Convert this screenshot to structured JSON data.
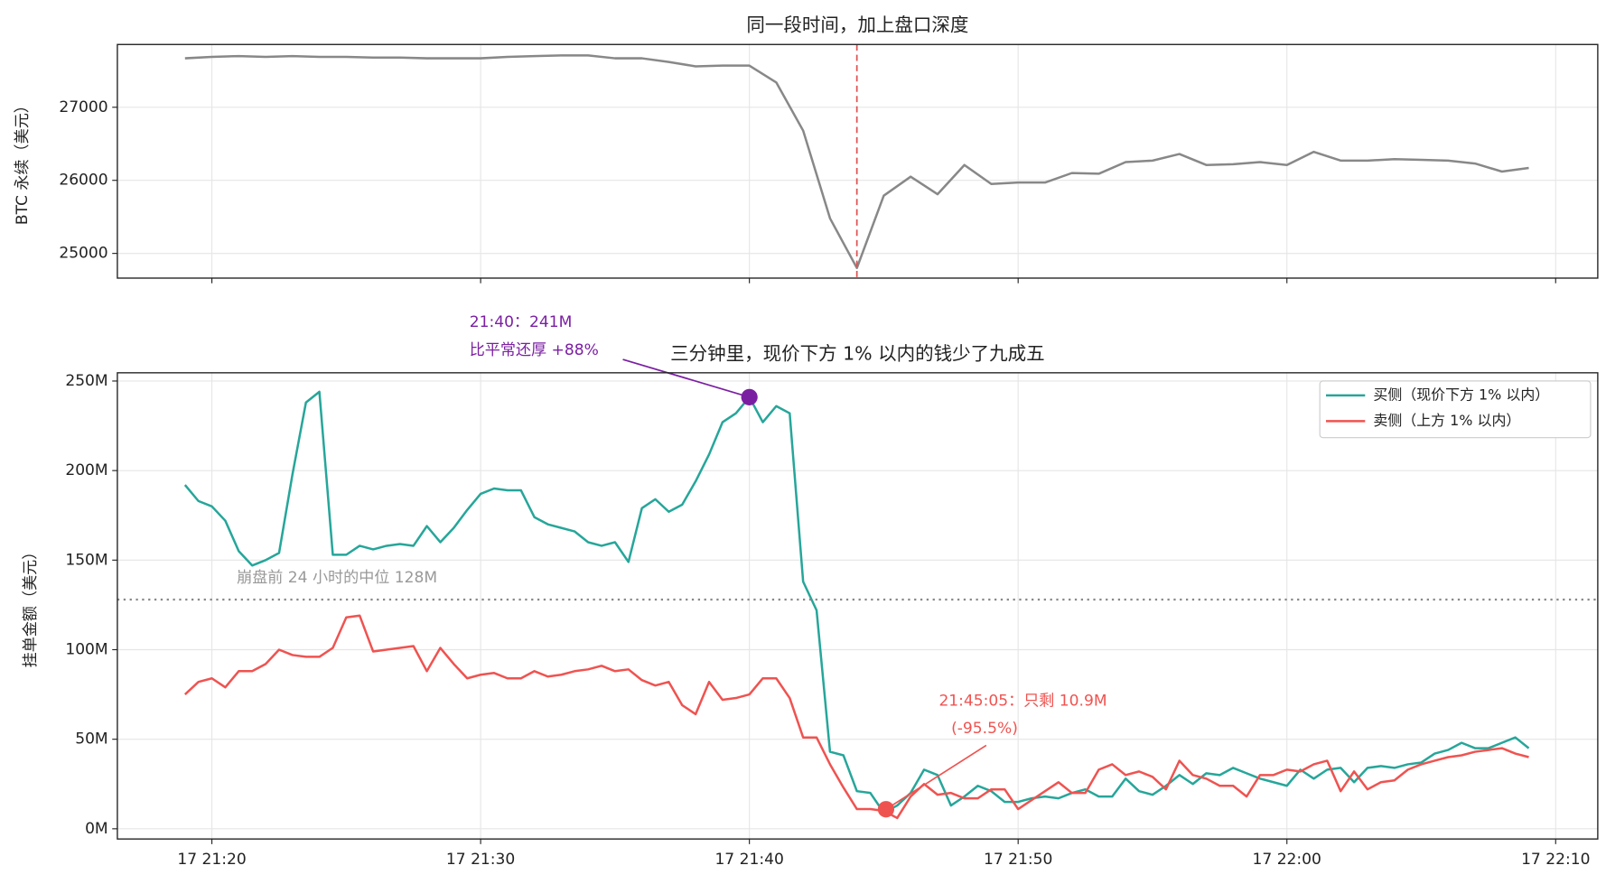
{
  "chart_data": [
    {
      "type": "line",
      "title": "同一段时间，加上盘口深度",
      "ylabel": "BTC 永续（美元）",
      "color": "#888888",
      "grid": true,
      "x": [
        "17 21:19",
        "17 21:20",
        "17 21:21",
        "17 21:22",
        "17 21:23",
        "17 21:24",
        "17 21:25",
        "17 21:26",
        "17 21:27",
        "17 21:28",
        "17 21:29",
        "17 21:30",
        "17 21:31",
        "17 21:32",
        "17 21:33",
        "17 21:34",
        "17 21:35",
        "17 21:36",
        "17 21:37",
        "17 21:38",
        "17 21:39",
        "17 21:40",
        "17 21:41",
        "17 21:42",
        "17 21:43",
        "17 21:44",
        "17 21:45",
        "17 21:46",
        "17 21:47",
        "17 21:48",
        "17 21:49",
        "17 21:50",
        "17 21:51",
        "17 21:52",
        "17 21:53",
        "17 21:54",
        "17 21:55",
        "17 21:56",
        "17 21:57",
        "17 21:58",
        "17 21:59",
        "17 22:00",
        "17 22:01",
        "17 22:02",
        "17 22:03",
        "17 22:04",
        "17 22:05",
        "17 22:06",
        "17 22:07",
        "17 22:08",
        "17 22:09"
      ],
      "values": [
        27670,
        27690,
        27700,
        27690,
        27700,
        27690,
        27690,
        27680,
        27680,
        27670,
        27670,
        27670,
        27690,
        27700,
        27710,
        27710,
        27670,
        27670,
        27620,
        27560,
        27570,
        27570,
        27340,
        26680,
        25480,
        24800,
        25790,
        26050,
        25810,
        26210,
        25950,
        25970,
        25970,
        26100,
        26090,
        26250,
        26270,
        26360,
        26210,
        26220,
        26250,
        26210,
        26390,
        26270,
        26270,
        26290,
        26280,
        26270,
        26230,
        26120,
        26170
      ],
      "xlim": [
        "17 21:16:29",
        "17 22:11:34"
      ],
      "xticks": [
        "17 21:20",
        "17 21:30",
        "17 21:40",
        "17 21:50",
        "17 22:00",
        "17 22:10"
      ],
      "ylim": [
        24662,
        27859
      ],
      "yticks": [
        25000,
        26000,
        27000
      ],
      "vline": {
        "x": "17 21:44",
        "color": "#e05050"
      }
    },
    {
      "type": "line",
      "title": "三分钟里，现价下方 1% 以内的钱少了九成五",
      "ylabel": "挂单金额（美元）",
      "grid": true,
      "legend": "upper right",
      "x": [
        "17 21:19:00",
        "17 21:19:30",
        "17 21:20:00",
        "17 21:20:30",
        "17 21:21:00",
        "17 21:21:30",
        "17 21:22:00",
        "17 21:22:30",
        "17 21:23:00",
        "17 21:23:30",
        "17 21:24:00",
        "17 21:24:30",
        "17 21:25:00",
        "17 21:25:30",
        "17 21:26:00",
        "17 21:26:30",
        "17 21:27:00",
        "17 21:27:30",
        "17 21:28:00",
        "17 21:28:30",
        "17 21:29:00",
        "17 21:29:30",
        "17 21:30:00",
        "17 21:30:30",
        "17 21:31:00",
        "17 21:31:30",
        "17 21:32:00",
        "17 21:32:30",
        "17 21:33:00",
        "17 21:33:30",
        "17 21:34:00",
        "17 21:34:30",
        "17 21:35:00",
        "17 21:35:30",
        "17 21:36:00",
        "17 21:36:30",
        "17 21:37:00",
        "17 21:37:30",
        "17 21:38:00",
        "17 21:38:30",
        "17 21:39:00",
        "17 21:39:30",
        "17 21:40:00",
        "17 21:40:30",
        "17 21:41:00",
        "17 21:41:30",
        "17 21:42:00",
        "17 21:42:30",
        "17 21:43:00",
        "17 21:43:30",
        "17 21:44:00",
        "17 21:44:30",
        "17 21:45:00",
        "17 21:45:30",
        "17 21:46:00",
        "17 21:46:30",
        "17 21:47:00",
        "17 21:47:30",
        "17 21:48:00",
        "17 21:48:30",
        "17 21:49:00",
        "17 21:49:30",
        "17 21:50:00",
        "17 21:50:30",
        "17 21:51:00",
        "17 21:51:30",
        "17 21:52:00",
        "17 21:52:30",
        "17 21:53:00",
        "17 21:53:30",
        "17 21:54:00",
        "17 21:54:30",
        "17 21:55:00",
        "17 21:55:30",
        "17 21:56:00",
        "17 21:56:30",
        "17 21:57:00",
        "17 21:57:30",
        "17 21:58:00",
        "17 21:58:30",
        "17 21:59:00",
        "17 21:59:30",
        "17 22:00:00",
        "17 22:00:30",
        "17 22:01:00",
        "17 22:01:30",
        "17 22:02:00",
        "17 22:02:30",
        "17 22:03:00",
        "17 22:03:30",
        "17 22:04:00",
        "17 22:04:30",
        "17 22:05:00",
        "17 22:05:30",
        "17 22:06:00",
        "17 22:06:30",
        "17 22:07:00",
        "17 22:07:30",
        "17 22:08:00",
        "17 22:08:30",
        "17 22:09:00"
      ],
      "series": [
        {
          "name": "买侧（现价下方 1% 以内）",
          "color": "#26a69a",
          "values": [
            192,
            183,
            180,
            172,
            155,
            147,
            150,
            154,
            198,
            238,
            244,
            153,
            153,
            158,
            156,
            158,
            159,
            158,
            169,
            160,
            168,
            178,
            187,
            190,
            189,
            189,
            174,
            170,
            168,
            166,
            160,
            158,
            160,
            149,
            179,
            184,
            177,
            181,
            194,
            209,
            227,
            232,
            241,
            227,
            236,
            232,
            138,
            122,
            43,
            41,
            21,
            20,
            9,
            13,
            20,
            33,
            30,
            13,
            18,
            24,
            21,
            15,
            15,
            17,
            18,
            17,
            20,
            22,
            18,
            18,
            28,
            21,
            19,
            24,
            30,
            25,
            31,
            30,
            34,
            31,
            28,
            26,
            24,
            33,
            28,
            33,
            34,
            26,
            34,
            35,
            34,
            36,
            37,
            42,
            44,
            48,
            45,
            45,
            48,
            51,
            45
          ]
        },
        {
          "name": "卖侧（上方 1% 以内）",
          "color": "#ef5350",
          "values": [
            75,
            82,
            84,
            79,
            88,
            88,
            92,
            100,
            97,
            96,
            96,
            101,
            118,
            119,
            99,
            100,
            101,
            102,
            88,
            101,
            92,
            84,
            86,
            87,
            84,
            84,
            88,
            85,
            86,
            88,
            89,
            91,
            88,
            89,
            83,
            80,
            82,
            69,
            64,
            82,
            72,
            73,
            75,
            84,
            84,
            73,
            51,
            51,
            36,
            23,
            11,
            11,
            10,
            6,
            18,
            25,
            19,
            20,
            17,
            17,
            22,
            22,
            11,
            16,
            21,
            26,
            20,
            20,
            33,
            36,
            30,
            32,
            29,
            22,
            38,
            30,
            28,
            24,
            24,
            18,
            30,
            30,
            33,
            32,
            36,
            38,
            21,
            32,
            22,
            26,
            27,
            33,
            36,
            38,
            40,
            41,
            43,
            44,
            45,
            42,
            40
          ]
        }
      ],
      "xlim": [
        "17 21:16:29",
        "17 22:11:34"
      ],
      "xticks": [
        "17 21:20",
        "17 21:30",
        "17 21:40",
        "17 21:50",
        "17 22:00",
        "17 22:10"
      ],
      "ylim": [
        -5.7,
        254.6
      ],
      "yticks": [
        {
          "value": 0,
          "label": "0M"
        },
        {
          "value": 50,
          "label": "50M"
        },
        {
          "value": 100,
          "label": "100M"
        },
        {
          "value": 150,
          "label": "150M"
        },
        {
          "value": 200,
          "label": "200M"
        },
        {
          "value": 250,
          "label": "250M"
        }
      ],
      "hline": {
        "value": 128,
        "label": "崩盘前 24 小时的中位 128M"
      },
      "annotations": [
        {
          "x": "17 21:40:00",
          "y": 241,
          "color": "#7b1fa2",
          "text": [
            "21:40：241M",
            "比平常还厚 +88%"
          ]
        },
        {
          "x": "17 21:45:05",
          "y": 10.9,
          "color": "#ef5350",
          "text": [
            "21:45:05：只剩 10.9M",
            "(-95.5%)"
          ]
        }
      ]
    }
  ]
}
